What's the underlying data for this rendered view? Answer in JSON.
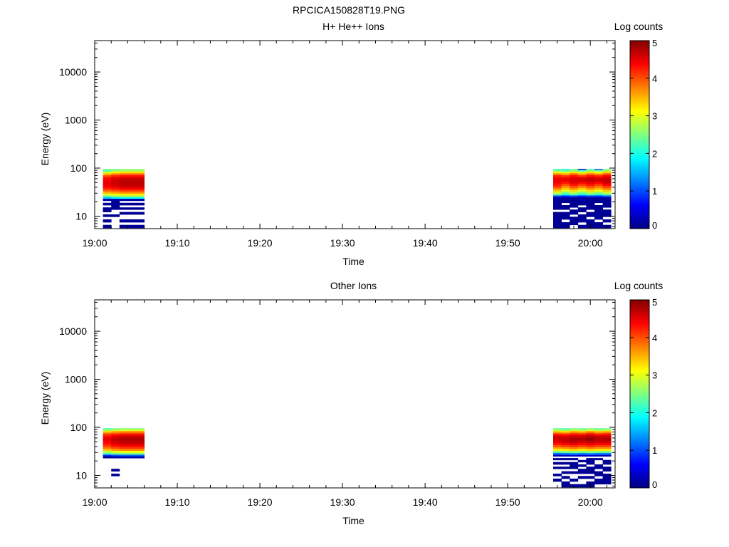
{
  "figure_title": "RPCICA150828T19.PNG",
  "colorbar": {
    "label": "Log counts",
    "ticks": [
      0,
      1,
      2,
      3,
      4,
      5
    ],
    "colors": [
      "#000080",
      "#0000ff",
      "#0080ff",
      "#00ffff",
      "#80ff80",
      "#ffff00",
      "#ff8000",
      "#ff0000",
      "#800000"
    ]
  },
  "chart_data": [
    {
      "type": "heatmap",
      "title": "H+ He++ Ions",
      "xlabel": "Time",
      "ylabel": "Energy (eV)",
      "x_tick_labels": [
        "19:00",
        "19:10",
        "19:20",
        "19:30",
        "19:40",
        "19:50",
        "20:00"
      ],
      "y_tick_labels": [
        "10",
        "100",
        "1000",
        "10000"
      ],
      "xlim_minutes_after_19_00": [
        0,
        63
      ],
      "ylim_ev": [
        5.5,
        45000
      ],
      "yscale": "log",
      "zlim_log_counts": [
        0,
        5
      ],
      "blocks": [
        {
          "time_start": "19:01",
          "time_end": "19:06",
          "energy_range_ev": [
            5.7,
            96
          ],
          "energies_ev": [
            95,
            88,
            81,
            74,
            68,
            62,
            56,
            50,
            45,
            41,
            37,
            34,
            31,
            28,
            26,
            24,
            22,
            20,
            18,
            16,
            14.5,
            13,
            11.5,
            10.3,
            9.2,
            8,
            7,
            6.2
          ],
          "sweeps": [
            [
              2.6,
              2.2,
              3.0,
              3.5,
              4.0,
              4.3,
              4.4,
              4.5,
              4.5,
              4.4,
              4.2,
              3.9,
              3.5,
              3.0,
              2.4,
              1.6,
              0.2,
              null,
              0.1,
              null,
              0.1,
              0.1,
              null,
              0.1,
              null,
              0.1,
              null,
              0.1
            ],
            [
              2.4,
              2.6,
              3.2,
              3.8,
              4.2,
              4.5,
              4.6,
              4.6,
              4.6,
              4.5,
              4.3,
              4.0,
              3.6,
              3.1,
              2.6,
              1.8,
              0.2,
              0.1,
              0.1,
              0.1,
              0.1,
              null,
              null,
              0.1,
              null,
              null,
              null,
              null
            ],
            [
              2.5,
              2.7,
              3.3,
              3.9,
              4.3,
              4.6,
              4.7,
              4.7,
              4.7,
              4.6,
              4.4,
              4.1,
              3.7,
              3.2,
              2.7,
              1.9,
              0.2,
              null,
              0.1,
              null,
              0.1,
              null,
              0.1,
              null,
              null,
              0.1,
              null,
              0.1
            ],
            [
              2.5,
              2.7,
              3.3,
              3.9,
              4.3,
              4.6,
              4.7,
              4.7,
              4.7,
              4.6,
              4.4,
              4.1,
              3.7,
              3.2,
              2.7,
              1.9,
              0.2,
              null,
              0.1,
              null,
              0.1,
              null,
              0.1,
              null,
              null,
              0.1,
              null,
              0.1
            ],
            [
              2.5,
              2.7,
              3.3,
              3.9,
              4.3,
              4.6,
              4.7,
              4.7,
              4.7,
              4.6,
              4.4,
              4.1,
              3.7,
              3.2,
              2.7,
              1.9,
              0.2,
              null,
              0.1,
              null,
              0.1,
              null,
              0.1,
              null,
              null,
              0.1,
              null,
              0.1
            ]
          ]
        },
        {
          "time_start": "19:55:30",
          "time_end": "20:02:30",
          "energy_range_ev": [
            5.7,
            96
          ],
          "energies_ev": [
            95,
            88,
            81,
            74,
            68,
            62,
            56,
            50,
            45,
            41,
            37,
            34,
            31,
            28,
            26,
            24,
            22,
            20,
            18,
            16,
            14.5,
            13,
            11.5,
            10.3,
            9.2,
            8,
            7,
            6.2
          ],
          "sweeps": [
            [
              2.2,
              2.5,
              3.2,
              3.8,
              4.2,
              4.4,
              4.5,
              4.4,
              4.3,
              4.1,
              3.8,
              3.4,
              2.9,
              2.4,
              1.0,
              0.2,
              0.2,
              0.1,
              0.1,
              0.1,
              0.1,
              null,
              0.1,
              0.1,
              0.1,
              0.1,
              0.1,
              0.1
            ],
            [
              2.0,
              2.3,
              3.0,
              3.6,
              4.1,
              4.4,
              4.5,
              4.3,
              4.0,
              3.7,
              3.4,
              3.0,
              2.5,
              2.0,
              0.8,
              0.2,
              0.1,
              0.1,
              null,
              0.1,
              0.1,
              null,
              0.1,
              0.1,
              0.1,
              null,
              0.1,
              0.1
            ],
            [
              2.3,
              2.6,
              3.3,
              3.9,
              4.3,
              4.5,
              4.6,
              4.5,
              4.3,
              4.0,
              3.7,
              3.3,
              2.8,
              2.3,
              1.0,
              0.2,
              0.1,
              0.1,
              0.1,
              0.1,
              null,
              0.1,
              0.1,
              null,
              0.1,
              0.1,
              0.1,
              null
            ],
            [
              0.4,
              2.2,
              3.0,
              3.6,
              4.1,
              4.5,
              4.6,
              4.4,
              4.1,
              3.8,
              3.4,
              3.0,
              2.5,
              2.0,
              0.8,
              0.2,
              0.2,
              0.1,
              0.1,
              null,
              0.1,
              0.1,
              null,
              0.1,
              0.1,
              0.1,
              null,
              0.1
            ],
            [
              2.2,
              2.6,
              3.3,
              3.9,
              4.3,
              4.6,
              4.7,
              4.5,
              4.3,
              4.0,
              3.7,
              3.3,
              2.8,
              2.3,
              1.0,
              0.2,
              0.1,
              0.1,
              0.1,
              0.1,
              0.1,
              null,
              0.1,
              0.1,
              null,
              0.1,
              0.1,
              0.1
            ],
            [
              1.0,
              2.4,
              3.1,
              3.7,
              4.2,
              4.5,
              4.6,
              4.4,
              4.1,
              3.8,
              3.5,
              3.1,
              2.6,
              2.1,
              0.9,
              0.2,
              0.1,
              0.1,
              null,
              0.1,
              0.1,
              0.1,
              0.1,
              0.1,
              0.1,
              null,
              0.1,
              0.1
            ],
            [
              2.4,
              2.7,
              3.4,
              4.0,
              4.4,
              4.6,
              4.7,
              4.6,
              4.4,
              4.1,
              3.8,
              3.4,
              2.9,
              2.4,
              1.1,
              0.2,
              0.1,
              0.1,
              0.1,
              0.1,
              null,
              0.1,
              0.1,
              0.1,
              null,
              0.1,
              null,
              0.1
            ]
          ]
        }
      ]
    },
    {
      "type": "heatmap",
      "title": "Other Ions",
      "xlabel": "Time",
      "ylabel": "Energy (eV)",
      "x_tick_labels": [
        "19:00",
        "19:10",
        "19:20",
        "19:30",
        "19:40",
        "19:50",
        "20:00"
      ],
      "y_tick_labels": [
        "10",
        "100",
        "1000",
        "10000"
      ],
      "xlim_minutes_after_19_00": [
        0,
        63
      ],
      "ylim_ev": [
        5.5,
        45000
      ],
      "yscale": "log",
      "zlim_log_counts": [
        0,
        5
      ],
      "blocks": [
        {
          "time_start": "19:01",
          "time_end": "19:06",
          "energy_range_ev": [
            5.7,
            96
          ],
          "energies_ev": [
            95,
            88,
            81,
            74,
            68,
            62,
            56,
            50,
            45,
            41,
            37,
            34,
            31,
            28,
            26,
            24,
            22,
            20,
            18,
            16,
            14.5,
            13,
            11.5,
            10.3,
            9.2,
            8,
            7,
            6.2
          ],
          "sweeps": [
            [
              2.2,
              2.6,
              3.3,
              3.9,
              4.2,
              4.4,
              4.5,
              4.4,
              4.3,
              4.1,
              3.8,
              3.4,
              2.8,
              2.2,
              0.8,
              0.1,
              null,
              null,
              null,
              null,
              null,
              null,
              null,
              null,
              null,
              null,
              null,
              null
            ],
            [
              2.4,
              2.8,
              3.5,
              4.0,
              4.4,
              4.6,
              4.7,
              4.6,
              4.5,
              4.3,
              4.0,
              3.6,
              3.0,
              2.4,
              1.0,
              0.2,
              null,
              null,
              null,
              null,
              null,
              0.1,
              null,
              0.1,
              null,
              null,
              null,
              null
            ],
            [
              2.5,
              2.9,
              3.6,
              4.1,
              4.5,
              4.7,
              4.8,
              4.7,
              4.6,
              4.4,
              4.1,
              3.7,
              3.1,
              2.5,
              1.1,
              0.2,
              null,
              null,
              null,
              null,
              null,
              null,
              null,
              null,
              null,
              null,
              null,
              null
            ],
            [
              2.5,
              2.9,
              3.6,
              4.1,
              4.5,
              4.7,
              4.8,
              4.7,
              4.6,
              4.4,
              4.1,
              3.7,
              3.1,
              2.5,
              1.1,
              0.2,
              null,
              null,
              null,
              null,
              null,
              null,
              null,
              null,
              null,
              null,
              null,
              null
            ],
            [
              2.5,
              2.9,
              3.6,
              4.1,
              4.5,
              4.7,
              4.8,
              4.7,
              4.6,
              4.4,
              4.1,
              3.7,
              3.1,
              2.5,
              1.1,
              0.2,
              null,
              null,
              null,
              null,
              null,
              null,
              null,
              null,
              null,
              null,
              null,
              null
            ]
          ]
        },
        {
          "time_start": "19:55:30",
          "time_end": "20:02:30",
          "energy_range_ev": [
            5.7,
            96
          ],
          "energies_ev": [
            95,
            88,
            81,
            74,
            68,
            62,
            56,
            50,
            45,
            41,
            37,
            34,
            31,
            28,
            26,
            24,
            22,
            20,
            18,
            16,
            14.5,
            13,
            11.5,
            10.3,
            9.2,
            8,
            7,
            6.2
          ],
          "sweeps": [
            [
              2.4,
              2.7,
              3.4,
              4.0,
              4.4,
              4.6,
              4.6,
              4.5,
              4.3,
              4.0,
              3.6,
              3.1,
              2.4,
              1.2,
              0.3,
              null,
              0.1,
              null,
              0.1,
              null,
              0.1,
              null,
              null,
              0.1,
              null,
              0.1,
              null,
              null
            ],
            [
              2.2,
              2.6,
              3.3,
              3.9,
              4.4,
              4.6,
              4.7,
              4.6,
              4.4,
              4.1,
              3.7,
              3.2,
              2.5,
              1.3,
              0.3,
              null,
              0.1,
              null,
              0.1,
              null,
              0.1,
              null,
              0.1,
              null,
              0.1,
              null,
              0.1,
              0.1
            ],
            [
              2.5,
              2.8,
              3.5,
              4.1,
              4.5,
              4.7,
              4.8,
              4.7,
              4.5,
              4.2,
              3.8,
              3.3,
              2.6,
              1.4,
              0.4,
              null,
              0.1,
              null,
              0.1,
              0.1,
              0.1,
              null,
              0.1,
              null,
              null,
              0.1,
              null,
              0.1
            ],
            [
              2.3,
              2.7,
              3.4,
              4.0,
              4.5,
              4.7,
              4.8,
              4.6,
              4.4,
              4.1,
              3.7,
              3.2,
              2.5,
              1.3,
              0.3,
              null,
              null,
              0.1,
              null,
              0.1,
              null,
              0.1,
              0.1,
              null,
              0.1,
              null,
              null,
              0.1
            ],
            [
              2.5,
              2.9,
              3.6,
              4.2,
              4.6,
              4.8,
              4.9,
              4.7,
              4.5,
              4.2,
              3.8,
              3.3,
              2.6,
              1.4,
              0.4,
              null,
              0.1,
              0.1,
              0.1,
              null,
              0.1,
              0.1,
              0.1,
              null,
              0.1,
              null,
              0.1,
              0.1
            ],
            [
              2.3,
              2.7,
              3.4,
              4.0,
              4.5,
              4.7,
              4.7,
              4.6,
              4.4,
              4.1,
              3.7,
              3.2,
              2.5,
              1.3,
              0.3,
              null,
              0.1,
              null,
              null,
              0.1,
              0.1,
              null,
              0.1,
              0.1,
              null,
              0.1,
              0.1,
              null
            ],
            [
              2.4,
              2.8,
              3.5,
              4.1,
              4.5,
              4.7,
              4.8,
              4.6,
              4.4,
              4.1,
              3.7,
              3.2,
              2.5,
              1.3,
              0.3,
              null,
              null,
              0.1,
              0.1,
              null,
              0.1,
              0.1,
              null,
              0.1,
              0.1,
              0.1,
              0.1,
              null
            ]
          ]
        }
      ]
    }
  ]
}
